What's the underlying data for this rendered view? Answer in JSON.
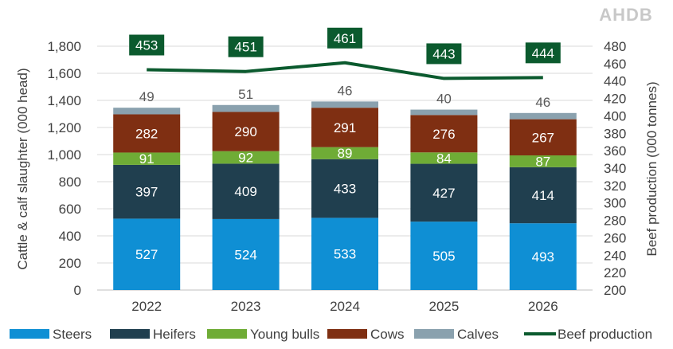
{
  "logo_text": "AHDB",
  "chart_data": {
    "type": "bar",
    "stacked": true,
    "categories": [
      "2022",
      "2023",
      "2024",
      "2025",
      "2026"
    ],
    "series": [
      {
        "name": "Steers",
        "color": "#0f8fd4",
        "values": [
          527,
          524,
          533,
          505,
          493
        ]
      },
      {
        "name": "Heifers",
        "color": "#203f4f",
        "values": [
          397,
          409,
          433,
          427,
          414
        ]
      },
      {
        "name": "Young bulls",
        "color": "#6fac36",
        "values": [
          91,
          92,
          89,
          84,
          87
        ]
      },
      {
        "name": "Cows",
        "color": "#7f2f12",
        "values": [
          282,
          290,
          291,
          276,
          267
        ]
      },
      {
        "name": "Calves",
        "color": "#8aa1ae",
        "values": [
          49,
          51,
          46,
          40,
          46
        ]
      }
    ],
    "line_series": {
      "name": "Beef production",
      "color": "#0b5a2e",
      "axis": "right",
      "values": [
        453,
        451,
        461,
        443,
        444
      ]
    },
    "ylabel": "Cattle & calf slaughter (000 head)",
    "ylabel_right": "Beef production (000 tonnes)",
    "ylim": [
      0,
      1800
    ],
    "yticks": [
      0,
      200,
      400,
      600,
      800,
      1000,
      1200,
      1400,
      1600,
      1800
    ],
    "ytick_labels": [
      "0",
      "200",
      "400",
      "600",
      "800",
      "1,000",
      "1,200",
      "1,400",
      "1,600",
      "1,800"
    ],
    "ylim_right": [
      200,
      480
    ],
    "yticks_right": [
      200,
      220,
      240,
      260,
      280,
      300,
      320,
      340,
      360,
      380,
      400,
      420,
      440,
      460,
      480
    ],
    "legend_position": "bottom",
    "grid": true
  }
}
